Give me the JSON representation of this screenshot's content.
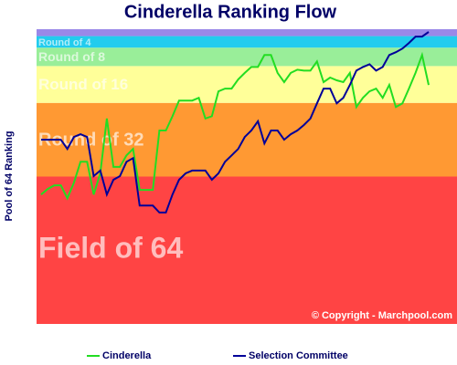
{
  "chart_data": {
    "type": "line",
    "title": "Cinderella Ranking Flow",
    "ylabel": "Pool of 64 Ranking",
    "annotation": "© Copyright - Marchpool.com",
    "ylim": [
      0,
      64
    ],
    "bands": [
      {
        "label": "Field of 64",
        "from": 0,
        "to": 32,
        "color": "#ff4444"
      },
      {
        "label": "Round of 32",
        "from": 32,
        "to": 48,
        "color": "#ff9933"
      },
      {
        "label": "Round of 16",
        "from": 48,
        "to": 56,
        "color": "#ffff99"
      },
      {
        "label": "Round of 8",
        "from": 56,
        "to": 60,
        "color": "#99ee99"
      },
      {
        "label": "Round of 4",
        "from": 60,
        "to": 62.5,
        "color": "#22ccee"
      },
      {
        "from": 62.5,
        "to": 64,
        "color": "#9a88e8"
      }
    ],
    "series": [
      {
        "name": "Cinderella",
        "color": "#22dd22",
        "values": [
          28.1,
          29.3,
          30.1,
          30.1,
          27.3,
          30.7,
          35.2,
          35.2,
          28.1,
          32.7,
          44.6,
          34.1,
          34.1,
          36.6,
          38,
          29.1,
          29.1,
          29.1,
          42,
          42,
          45.1,
          48.5,
          48.5,
          48.5,
          49.1,
          44.6,
          45.1,
          50.5,
          51.1,
          51.1,
          53.1,
          54.5,
          55.8,
          55.8,
          58.4,
          58.4,
          54.5,
          52.5,
          54.5,
          55.2,
          55,
          55,
          57,
          52.5,
          53.5,
          52.9,
          52.5,
          54.5,
          47.1,
          49.1,
          50.5,
          51.1,
          49.1,
          51.9,
          47.1,
          47.9,
          51.1,
          54.5,
          58.4,
          51.9
        ]
      },
      {
        "name": "Selection Committee",
        "color": "#000099",
        "values": [
          40,
          40,
          40,
          40,
          38,
          40.6,
          41.2,
          40.6,
          32.1,
          33.3,
          28.1,
          31.3,
          32.1,
          35.2,
          36,
          25.7,
          25.7,
          25.7,
          24.2,
          24.2,
          28.1,
          31.3,
          32.7,
          33.3,
          33.3,
          33.3,
          31.3,
          32.7,
          35.2,
          36.6,
          38,
          40.6,
          42,
          44,
          39.2,
          42,
          42,
          40,
          41.2,
          42,
          43.2,
          44.6,
          47.9,
          51.1,
          51.1,
          47.9,
          49.1,
          51.9,
          55,
          55.8,
          56.4,
          55,
          55.8,
          58.4,
          59,
          59.8,
          61,
          62.4,
          62.4,
          63.4
        ]
      }
    ]
  }
}
